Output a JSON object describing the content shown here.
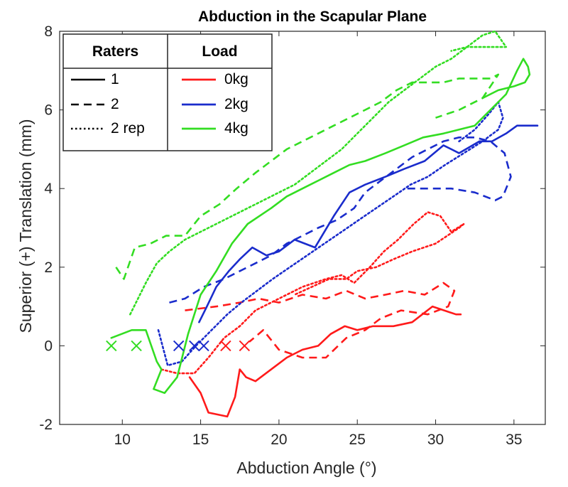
{
  "chart_data": {
    "type": "line",
    "title": "Abduction in the Scapular Plane",
    "xlabel": "Abduction Angle (°)",
    "ylabel": "Superior (+) Translation (mm)",
    "xlim": [
      6,
      37
    ],
    "ylim": [
      -2,
      8
    ],
    "xticks": [
      "10",
      "15",
      "20",
      "25",
      "30",
      "35"
    ],
    "yticks": [
      "-2",
      "0",
      "2",
      "4",
      "6",
      "8"
    ],
    "grid": false,
    "legend": {
      "placement": "top-left",
      "raters_header": "Raters",
      "load_header": "Load",
      "raters": [
        {
          "label": "1",
          "dash": "solid"
        },
        {
          "label": "2",
          "dash": "dashed"
        },
        {
          "label": "2 rep",
          "dash": "dotted"
        }
      ],
      "loads": [
        {
          "label": "0kg",
          "color": "#ff1a1a"
        },
        {
          "label": "2kg",
          "color": "#1a2ccc"
        },
        {
          "label": "4kg",
          "color": "#33dd22"
        }
      ]
    },
    "series": [
      {
        "rater": "1",
        "load": "0kg",
        "color": "#ff1a1a",
        "dash": "solid",
        "x": [
          14.3,
          15.0,
          15.5,
          16.7,
          17.2,
          17.5,
          17.9,
          18.5,
          19.5,
          20.5,
          21.5,
          22.5,
          23.3,
          24.2,
          25.0,
          26.0,
          27.3,
          28.5,
          29.8,
          31.3,
          31.6
        ],
        "y": [
          -0.8,
          -1.2,
          -1.7,
          -1.8,
          -1.3,
          -0.6,
          -0.8,
          -0.9,
          -0.6,
          -0.3,
          -0.1,
          0.0,
          0.3,
          0.5,
          0.4,
          0.5,
          0.5,
          0.6,
          1.0,
          0.8,
          0.8
        ]
      },
      {
        "rater": "2",
        "load": "0kg",
        "color": "#ff1a1a",
        "dash": "dashed",
        "x": [
          14.0,
          16.0,
          17.5,
          18.7,
          20.0,
          21.5,
          23.0,
          24.3,
          25.5,
          26.8,
          28.0,
          29.3,
          30.5,
          31.2,
          30.8,
          29.5,
          27.8,
          26.5,
          25.5,
          24.3,
          23.0,
          21.5,
          20.0,
          19.0,
          18.1
        ],
        "y": [
          0.9,
          1.0,
          1.1,
          1.2,
          1.1,
          1.3,
          1.2,
          1.4,
          1.2,
          1.3,
          1.4,
          1.3,
          1.6,
          1.4,
          1.0,
          0.8,
          0.9,
          0.7,
          0.4,
          0.2,
          -0.3,
          -0.3,
          -0.1,
          0.4,
          0.1
        ]
      },
      {
        "rater": "2 rep",
        "load": "0kg",
        "color": "#ff1a1a",
        "dash": "dotted",
        "x": [
          12.5,
          13.5,
          14.6,
          15.5,
          16.5,
          17.5,
          18.5,
          20.0,
          21.5,
          23.0,
          24.0,
          24.8,
          25.8,
          26.7,
          27.6,
          28.6,
          29.5,
          30.3,
          31.0,
          31.8,
          31.5,
          30.0,
          28.5,
          27.3,
          26.2,
          25.0,
          24.3,
          23.2,
          22.1,
          21.0
        ],
        "y": [
          -0.6,
          -0.7,
          -0.7,
          -0.3,
          0.2,
          0.5,
          0.9,
          1.2,
          1.5,
          1.7,
          1.8,
          1.6,
          2.0,
          2.4,
          2.7,
          3.1,
          3.4,
          3.3,
          2.9,
          3.1,
          3.0,
          2.6,
          2.4,
          2.2,
          2.0,
          1.9,
          1.7,
          1.7,
          1.5,
          1.3
        ]
      },
      {
        "rater": "1",
        "load": "2kg",
        "color": "#1a2ccc",
        "dash": "solid",
        "x": [
          14.9,
          15.4,
          16.0,
          16.8,
          17.5,
          18.3,
          19.2,
          20.0,
          21.0,
          22.3,
          23.5,
          24.5,
          25.5,
          26.8,
          28.0,
          29.3,
          30.5,
          31.5,
          32.8,
          33.6,
          34.5,
          35.2,
          36.5
        ],
        "y": [
          0.6,
          1.0,
          1.5,
          1.9,
          2.2,
          2.5,
          2.3,
          2.4,
          2.7,
          2.5,
          3.3,
          3.9,
          4.1,
          4.3,
          4.5,
          4.7,
          5.1,
          4.9,
          5.2,
          5.2,
          5.4,
          5.6,
          5.6
        ]
      },
      {
        "rater": "2",
        "load": "2kg",
        "color": "#1a2ccc",
        "dash": "dashed",
        "x": [
          13.0,
          14.0,
          15.2,
          16.5,
          17.5,
          18.5,
          19.5,
          20.5,
          21.5,
          22.5,
          23.7,
          24.8,
          25.5,
          26.5,
          27.5,
          28.5,
          29.5,
          30.5,
          31.5,
          32.5,
          33.5,
          34.4,
          34.8,
          34.3,
          33.8,
          32.5,
          31.0,
          29.5,
          28.2
        ],
        "y": [
          1.1,
          1.2,
          1.5,
          1.7,
          1.9,
          2.1,
          2.3,
          2.6,
          2.8,
          3.0,
          3.2,
          3.5,
          3.9,
          4.2,
          4.5,
          4.8,
          5.0,
          5.2,
          5.3,
          5.3,
          5.2,
          4.9,
          4.3,
          3.8,
          3.7,
          3.9,
          4.0,
          4.0,
          4.0
        ]
      },
      {
        "rater": "2 rep",
        "load": "2kg",
        "color": "#1a2ccc",
        "dash": "dotted",
        "x": [
          12.3,
          12.9,
          13.8,
          14.7,
          15.7,
          16.7,
          17.6,
          18.6,
          19.6,
          20.7,
          21.8,
          22.9,
          24.0,
          25.1,
          26.2,
          27.3,
          28.4,
          29.5,
          30.6,
          31.8,
          33.0,
          34.0,
          34.3,
          34.0,
          33.4,
          32.5,
          31.5
        ],
        "y": [
          0.4,
          -0.5,
          -0.4,
          0.0,
          0.4,
          0.8,
          1.1,
          1.4,
          1.7,
          2.0,
          2.3,
          2.6,
          2.9,
          3.2,
          3.5,
          3.8,
          4.1,
          4.3,
          4.6,
          4.9,
          5.2,
          5.5,
          5.8,
          6.2,
          5.9,
          5.5,
          5.2
        ]
      },
      {
        "rater": "1",
        "load": "4kg",
        "color": "#33dd22",
        "dash": "solid",
        "x": [
          9.3,
          10.6,
          11.5,
          12.2,
          12.5,
          12.0,
          12.7,
          13.5,
          14.2,
          15.0,
          16.0,
          17.0,
          18.0,
          19.5,
          20.5,
          21.5,
          22.5,
          23.5,
          24.5,
          25.5,
          26.8,
          28.0,
          29.2,
          30.5,
          31.5,
          32.5,
          33.5,
          34.5,
          35.2,
          35.6,
          35.9,
          36.0,
          35.7,
          35.0,
          34.0,
          33.0
        ],
        "y": [
          0.2,
          0.4,
          0.4,
          -0.4,
          -0.6,
          -1.1,
          -1.2,
          -0.8,
          0.3,
          1.3,
          1.9,
          2.6,
          3.1,
          3.5,
          3.8,
          4.0,
          4.2,
          4.4,
          4.6,
          4.7,
          4.9,
          5.1,
          5.3,
          5.4,
          5.5,
          5.6,
          6.0,
          6.4,
          7.0,
          7.3,
          7.1,
          6.9,
          6.7,
          6.6,
          6.5,
          6.3
        ]
      },
      {
        "rater": "2",
        "load": "4kg",
        "color": "#33dd22",
        "dash": "dashed",
        "x": [
          9.6,
          10.1,
          10.8,
          11.8,
          12.8,
          14.0,
          15.0,
          16.2,
          17.3,
          18.5,
          19.5,
          20.5,
          21.5,
          22.5,
          23.5,
          24.5,
          25.5,
          26.5,
          27.5,
          28.5,
          29.5,
          30.5,
          31.5,
          32.5,
          33.5,
          34.0,
          33.0,
          31.5,
          30.0
        ],
        "y": [
          2.0,
          1.7,
          2.5,
          2.6,
          2.8,
          2.8,
          3.3,
          3.6,
          4.0,
          4.4,
          4.7,
          5.0,
          5.2,
          5.4,
          5.6,
          5.8,
          6.0,
          6.2,
          6.5,
          6.7,
          6.7,
          6.7,
          6.8,
          6.8,
          6.8,
          6.9,
          6.3,
          6.0,
          5.8
        ]
      },
      {
        "rater": "2 rep",
        "load": "4kg",
        "color": "#33dd22",
        "dash": "dotted",
        "x": [
          10.5,
          11.5,
          12.2,
          13.0,
          14.0,
          15.0,
          16.0,
          17.0,
          18.0,
          19.0,
          20.0,
          21.0,
          22.0,
          23.0,
          24.0,
          25.0,
          26.0,
          27.0,
          28.0,
          29.0,
          30.0,
          31.0,
          32.0,
          33.0,
          33.8,
          34.5,
          34.0,
          33.0,
          32.0,
          31.0
        ],
        "y": [
          0.8,
          1.6,
          2.1,
          2.4,
          2.7,
          2.9,
          3.1,
          3.3,
          3.5,
          3.7,
          3.9,
          4.1,
          4.4,
          4.7,
          5.0,
          5.4,
          5.8,
          6.2,
          6.5,
          6.8,
          7.1,
          7.3,
          7.6,
          7.9,
          8.0,
          7.6,
          7.6,
          7.6,
          7.6,
          7.5
        ]
      }
    ],
    "start_markers": [
      {
        "x": 9.3,
        "y": 0.0,
        "color": "#33dd22"
      },
      {
        "x": 10.9,
        "y": 0.0,
        "color": "#33dd22"
      },
      {
        "x": 13.6,
        "y": 0.0,
        "color": "#1a2ccc"
      },
      {
        "x": 14.6,
        "y": 0.0,
        "color": "#1a2ccc"
      },
      {
        "x": 15.2,
        "y": 0.0,
        "color": "#1a2ccc"
      },
      {
        "x": 16.6,
        "y": 0.0,
        "color": "#ff1a1a"
      },
      {
        "x": 17.8,
        "y": 0.0,
        "color": "#ff1a1a"
      }
    ]
  }
}
